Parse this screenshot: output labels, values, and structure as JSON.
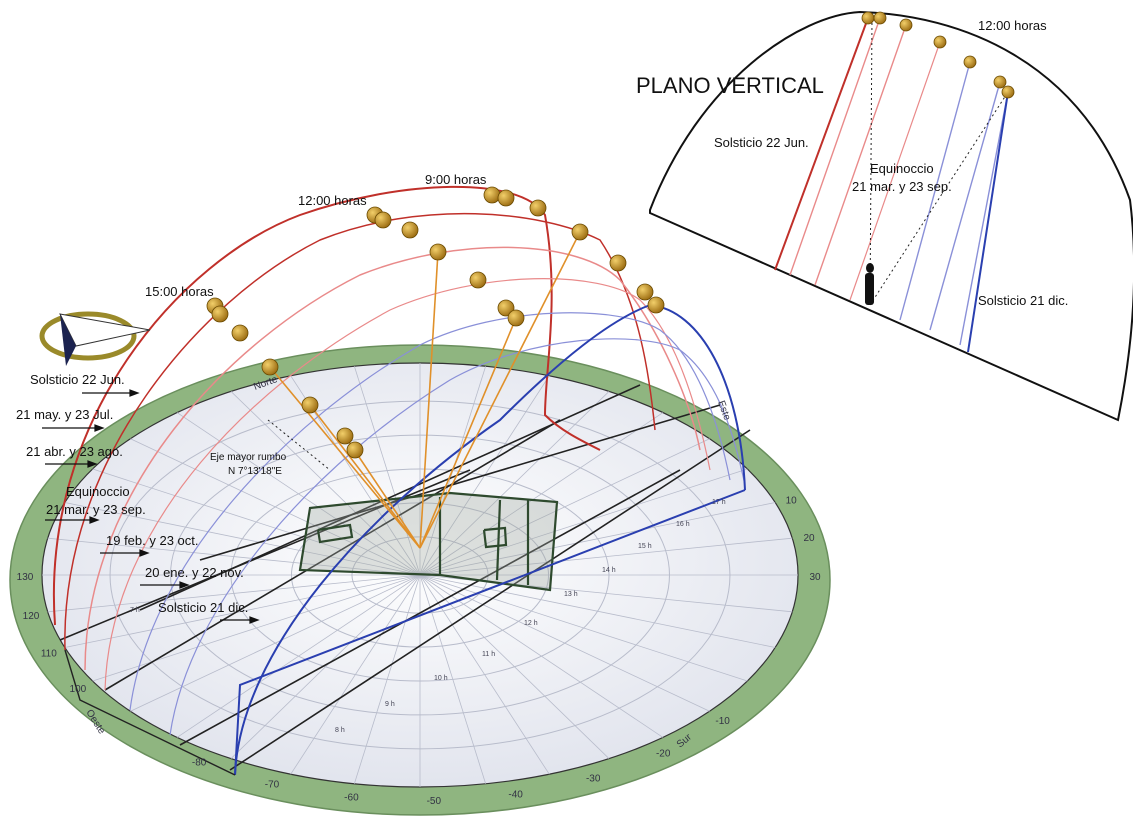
{
  "main_diagram": {
    "hour_labels": [
      "9:00 horas",
      "12:00 horas",
      "15:00 horas"
    ],
    "date_labels": [
      "Solsticio 22 Jun.",
      "21 may. y 23 Jul.",
      "21 abr. y 23 ago.",
      "Equinoccio",
      "21 mar. y 23 sep.",
      "19 feb. y 23 oct.",
      "20 ene. y 22 nov.",
      "Solsticio 21 dic."
    ],
    "axis_text": [
      "Eje mayor rumbo",
      "N 7°13'18\"E"
    ],
    "cardinal": {
      "west": "Oeste",
      "south": "Sur",
      "north": "Norte",
      "east": "Este"
    },
    "azimuth_ticks": [
      "10",
      "20",
      "30",
      "-10",
      "-20",
      "-30",
      "-40",
      "-50",
      "-60",
      "-70",
      "-80",
      "100",
      "110",
      "120",
      "130"
    ],
    "ring_hours": [
      "7 h",
      "8 h",
      "9 h",
      "10 h",
      "11 h",
      "12 h",
      "13 h",
      "14 h",
      "15 h",
      "16 h",
      "17 h"
    ]
  },
  "inset": {
    "title": "PLANO VERTICAL",
    "hour_label": "12:00 horas",
    "labels": [
      "Solsticio 22 Jun.",
      "Equinoccio",
      "21 mar. y 23 sep.",
      "Solsticio 21 dic."
    ]
  },
  "colors": {
    "ring": "#8fb580",
    "summer": "#c0302a",
    "mid_red": "#e98a8a",
    "winter": "#2a3fb0",
    "mid_blue": "#8a90d8",
    "sun": "#c8962a",
    "ray": "#e0902a",
    "grid": "#b8bccb",
    "disk": "#eceef4"
  }
}
